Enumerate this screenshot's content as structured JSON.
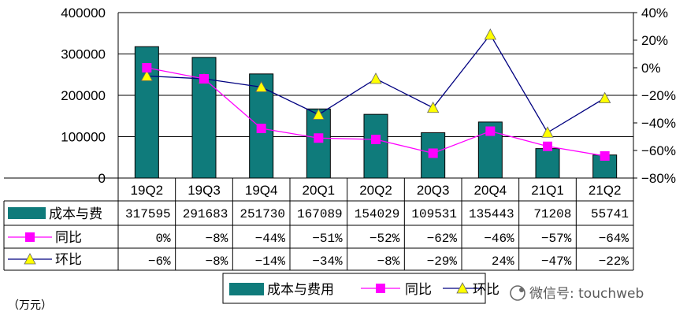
{
  "chart_data": {
    "type": "bar+line",
    "categories": [
      "19Q2",
      "19Q3",
      "19Q4",
      "20Q1",
      "20Q2",
      "20Q3",
      "20Q4",
      "21Q1",
      "21Q2"
    ],
    "y_left": {
      "ticks": [
        "400000",
        "300000",
        "200000",
        "100000",
        "0"
      ],
      "ylim": [
        0,
        400000
      ]
    },
    "y_right": {
      "ticks": [
        "40%",
        "20%",
        "0%",
        "−20%",
        "−40%",
        "−60%",
        "−80%"
      ],
      "ylim": [
        -80,
        40
      ]
    },
    "series": [
      {
        "name": "成本与费",
        "type": "bar",
        "axis": "left",
        "color": "#0f7b7b",
        "values": [
          317595,
          291683,
          251730,
          167089,
          154029,
          109531,
          135443,
          71208,
          55741
        ],
        "labels": [
          "317595",
          "291683",
          "251730",
          "167089",
          "154029",
          "109531",
          "135443",
          "71208",
          "55741"
        ]
      },
      {
        "name": "同比",
        "type": "line",
        "axis": "right",
        "color": "#ff00ff",
        "marker": "square",
        "values": [
          0,
          -8,
          -44,
          -51,
          -52,
          -62,
          -46,
          -57,
          -64
        ],
        "labels": [
          "0%",
          "−8%",
          "−44%",
          "−51%",
          "−52%",
          "−62%",
          "−46%",
          "−57%",
          "−64%"
        ]
      },
      {
        "name": "环比",
        "type": "line",
        "axis": "right",
        "color": "#000080",
        "marker": "triangle",
        "marker_color": "#ffff00",
        "values": [
          -6,
          -8,
          -14,
          -34,
          -8,
          -29,
          24,
          -47,
          -22
        ],
        "labels": [
          "−6%",
          "−8%",
          "−14%",
          "−34%",
          "−8%",
          "−29%",
          "24%",
          "−47%",
          "−22%"
        ]
      }
    ],
    "legend": {
      "placement": "bottom-center",
      "items": [
        "成本与费用",
        "同比",
        "环比"
      ]
    },
    "grid": true
  },
  "unit_label": "（万元）",
  "watermark": "微信号: touchweb"
}
